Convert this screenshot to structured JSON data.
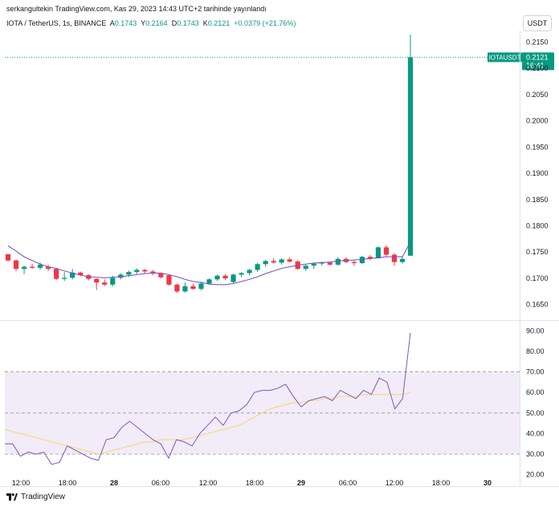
{
  "header": {
    "publisher_line": "serkangultekin TradingView.com, Kas 29, 2023 14:43 UTC+2 tarihinde yayınlandı"
  },
  "legend": {
    "symbol": "IOTA / TetherUS, 1s, BINANCE",
    "open_key": "A",
    "open": "0.1743",
    "high_key": "Y",
    "high": "0.2164",
    "low_key": "D",
    "low": "0.1743",
    "close_key": "K",
    "close": "0.2121",
    "change": "+0.0379 (+21.76%)"
  },
  "currency_button": "USDT",
  "price_label": {
    "symbol": "IOTAUSDT",
    "price": "0.2121",
    "countdown": "16:41"
  },
  "footer": {
    "brand": "TradingView"
  },
  "colors": {
    "up": "#089981",
    "down": "#f23645",
    "ma": "#7e57c2",
    "rsi": "#7e57c2",
    "rsi_ma": "#f9d97d",
    "band": "#ede7f6"
  },
  "chart_data": [
    {
      "type": "candlestick",
      "title": "IOTA / TetherUS, 1s, BINANCE",
      "x_ticks": [
        "12:00",
        "18:00",
        "28",
        "06:00",
        "12:00",
        "18:00",
        "29",
        "06:00",
        "12:00",
        "18:00",
        "30"
      ],
      "y_ticks": [
        "0.2150",
        "0.2100",
        "0.2050",
        "0.2000",
        "0.1950",
        "0.1900",
        "0.1850",
        "0.1800",
        "0.1750",
        "0.1700",
        "0.1650"
      ],
      "ylim": [
        0.1622,
        0.2172
      ],
      "last_price": 0.2121,
      "candles": [
        [
          0.1746,
          0.1746,
          0.1732,
          0.1734
        ],
        [
          0.1734,
          0.1736,
          0.1714,
          0.1718
        ],
        [
          0.1718,
          0.1724,
          0.1708,
          0.1722
        ],
        [
          0.1722,
          0.1728,
          0.1718,
          0.172
        ],
        [
          0.172,
          0.173,
          0.1716,
          0.1726
        ],
        [
          0.1722,
          0.1726,
          0.1714,
          0.1718
        ],
        [
          0.1718,
          0.1719,
          0.1697,
          0.1699
        ],
        [
          0.1699,
          0.1712,
          0.1695,
          0.1701
        ],
        [
          0.1701,
          0.1718,
          0.1698,
          0.1711
        ],
        [
          0.1711,
          0.1713,
          0.1704,
          0.1706
        ],
        [
          0.1706,
          0.1708,
          0.1696,
          0.1699
        ],
        [
          0.1699,
          0.17,
          0.1678,
          0.1692
        ],
        [
          0.1692,
          0.1698,
          0.1685,
          0.1688
        ],
        [
          0.1688,
          0.1705,
          0.1684,
          0.1701
        ],
        [
          0.1701,
          0.171,
          0.1698,
          0.1707
        ],
        [
          0.1707,
          0.1715,
          0.1703,
          0.1712
        ],
        [
          0.1712,
          0.1719,
          0.1708,
          0.1716
        ],
        [
          0.1716,
          0.1718,
          0.171,
          0.1713
        ],
        [
          0.1713,
          0.1716,
          0.1706,
          0.171
        ],
        [
          0.171,
          0.1711,
          0.17,
          0.1702
        ],
        [
          0.1706,
          0.1708,
          0.1686,
          0.1688
        ],
        [
          0.1688,
          0.169,
          0.1672,
          0.1675
        ],
        [
          0.1675,
          0.1692,
          0.1673,
          0.1685
        ],
        [
          0.1685,
          0.169,
          0.1678,
          0.168
        ],
        [
          0.168,
          0.1694,
          0.1677,
          0.169
        ],
        [
          0.169,
          0.17,
          0.1688,
          0.1698
        ],
        [
          0.1698,
          0.1707,
          0.1695,
          0.1705
        ],
        [
          0.1705,
          0.1708,
          0.1697,
          0.17
        ],
        [
          0.1693,
          0.1709,
          0.169,
          0.1707
        ],
        [
          0.1707,
          0.1712,
          0.1702,
          0.171
        ],
        [
          0.171,
          0.1718,
          0.1706,
          0.1716
        ],
        [
          0.1716,
          0.173,
          0.1712,
          0.1727
        ],
        [
          0.1727,
          0.1735,
          0.1722,
          0.1733
        ],
        [
          0.1733,
          0.1738,
          0.1728,
          0.173
        ],
        [
          0.173,
          0.1738,
          0.1726,
          0.1736
        ],
        [
          0.1736,
          0.174,
          0.173,
          0.1732
        ],
        [
          0.1732,
          0.1735,
          0.1716,
          0.1718
        ],
        [
          0.1718,
          0.1726,
          0.1714,
          0.1724
        ],
        [
          0.1724,
          0.173,
          0.1718,
          0.1728
        ],
        [
          0.1728,
          0.1732,
          0.1724,
          0.173
        ],
        [
          0.173,
          0.1732,
          0.1724,
          0.1726
        ],
        [
          0.1726,
          0.174,
          0.1724,
          0.1737
        ],
        [
          0.1737,
          0.174,
          0.1729,
          0.1731
        ],
        [
          0.1731,
          0.1734,
          0.1724,
          0.1729
        ],
        [
          0.1729,
          0.1743,
          0.1727,
          0.1741
        ],
        [
          0.1741,
          0.1744,
          0.1734,
          0.1737
        ],
        [
          0.1738,
          0.1761,
          0.1738,
          0.1759
        ],
        [
          0.1759,
          0.1763,
          0.1742,
          0.1745
        ],
        [
          0.1745,
          0.1748,
          0.1724,
          0.1731
        ],
        [
          0.1731,
          0.1743,
          0.1728,
          0.1737
        ],
        [
          0.1743,
          0.2164,
          0.1743,
          0.2121
        ]
      ],
      "ma": [
        0.1762,
        0.1752,
        0.1741,
        0.1734,
        0.1727,
        0.1722,
        0.1719,
        0.1714,
        0.171,
        0.1706,
        0.1703,
        0.1702,
        0.1701,
        0.1702,
        0.1703,
        0.1705,
        0.1707,
        0.1709,
        0.171,
        0.171,
        0.1707,
        0.1703,
        0.1698,
        0.1694,
        0.1692,
        0.1689,
        0.1688,
        0.1688,
        0.169,
        0.1694,
        0.1698,
        0.1703,
        0.1709,
        0.1714,
        0.1719,
        0.1722,
        0.1725,
        0.1727,
        0.1729,
        0.173,
        0.1731,
        0.1733,
        0.1734,
        0.1735,
        0.1736,
        0.1738,
        0.1739,
        0.1741,
        0.1741,
        0.1741,
        0.1769
      ]
    },
    {
      "type": "line",
      "x_ticks": [
        "12:00",
        "18:00",
        "28",
        "06:00",
        "12:00",
        "18:00",
        "29",
        "06:00",
        "12:00",
        "18:00",
        "30"
      ],
      "y_ticks": [
        "90.00",
        "80.00",
        "70.00",
        "60.00",
        "50.00",
        "40.00",
        "30.00",
        "20.00"
      ],
      "ylim": [
        16,
        94
      ],
      "bands": [
        70,
        50,
        30
      ],
      "series": [
        {
          "values": [
            35,
            35,
            29,
            31,
            30,
            31,
            25,
            26,
            34,
            32,
            30,
            28,
            27,
            37,
            38,
            43,
            46,
            43,
            40,
            37,
            35,
            28,
            37,
            36,
            34,
            40,
            44,
            48,
            44,
            50,
            51,
            54,
            60,
            61,
            61,
            62,
            64,
            58,
            53,
            56,
            57,
            58,
            56,
            61,
            59,
            57,
            61,
            59,
            67,
            65,
            52,
            57,
            89
          ]
        },
        {
          "values": [
            42,
            41,
            40,
            39,
            38,
            37,
            36,
            35,
            34,
            33,
            32,
            31,
            30,
            31,
            32,
            33,
            34,
            35,
            36,
            36,
            37,
            37,
            37,
            37,
            38,
            39,
            40,
            41,
            42,
            43,
            44,
            46,
            48,
            50,
            52,
            53,
            54,
            55,
            55,
            56,
            56,
            57,
            57,
            58,
            58,
            58,
            59,
            59,
            59,
            59,
            59,
            59,
            60
          ]
        }
      ]
    }
  ]
}
